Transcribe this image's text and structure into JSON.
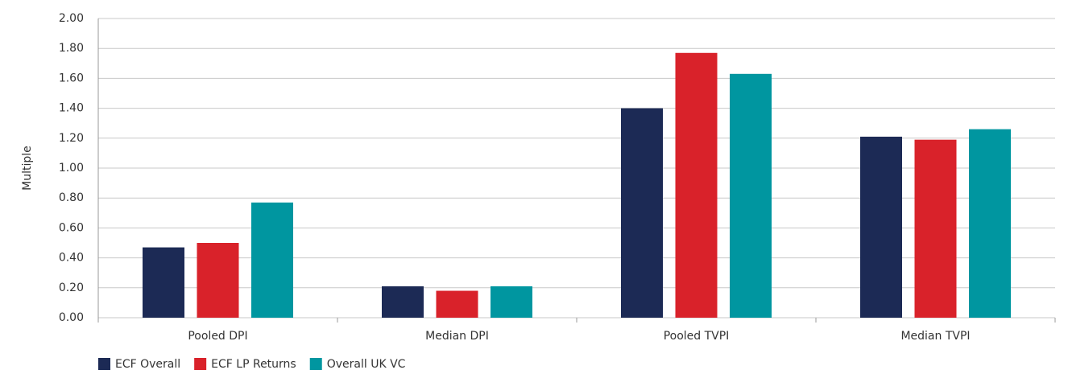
{
  "chart_data": {
    "type": "bar",
    "y_label": "Multiple",
    "categories": [
      "Pooled DPI",
      "Median DPI",
      "Pooled TVPI",
      "Median TVPI"
    ],
    "series": [
      {
        "name": "ECF Overall",
        "color": "#1c2a55",
        "values": [
          0.47,
          0.21,
          1.4,
          1.21
        ]
      },
      {
        "name": "ECF LP Returns",
        "color": "#d9222a",
        "values": [
          0.5,
          0.18,
          1.77,
          1.19
        ]
      },
      {
        "name": "Overall UK VC",
        "color": "#0096a0",
        "values": [
          0.77,
          0.21,
          1.63,
          1.26
        ]
      }
    ],
    "ylim": [
      0,
      2
    ],
    "yticks": [
      {
        "value": 0,
        "label": "0.00"
      },
      {
        "value": 0.2,
        "label": "0.20"
      },
      {
        "value": 0.4,
        "label": "0.40"
      },
      {
        "value": 0.6,
        "label": "0.60"
      },
      {
        "value": 0.8,
        "label": "0.80"
      },
      {
        "value": 1,
        "label": "1.00"
      },
      {
        "value": 1.2,
        "label": "1.20"
      },
      {
        "value": 1.4,
        "label": "1.40"
      },
      {
        "value": 1.6,
        "label": "1.60"
      },
      {
        "value": 1.8,
        "label": "1.80"
      },
      {
        "value": 2,
        "label": "2.00"
      }
    ],
    "grid": true,
    "legend": "bottom-left"
  }
}
